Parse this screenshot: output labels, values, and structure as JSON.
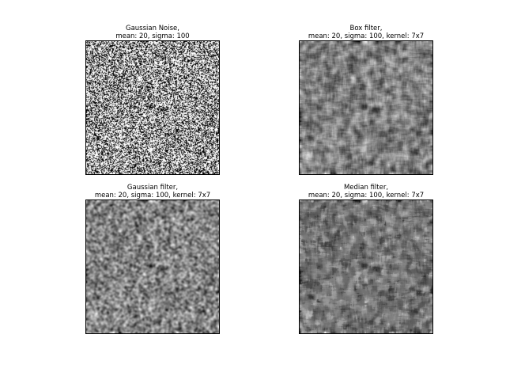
{
  "panels": [
    {
      "id": "noise",
      "title_line1": "Gaussian Noise,",
      "title_line2": "mean: 20, sigma: 100"
    },
    {
      "id": "box",
      "title_line1": "Box filter,",
      "title_line2": "mean: 20, sigma: 100, kernel: 7x7"
    },
    {
      "id": "gaussian",
      "title_line1": "Gaussian filter,",
      "title_line2": "mean: 20, sigma: 100, kernel: 7x7"
    },
    {
      "id": "median",
      "title_line1": "Median filter,",
      "title_line2": "mean: 20, sigma: 100, kernel: 7x7"
    }
  ],
  "colors": {
    "frame": "#000000",
    "background": "#ffffff"
  }
}
